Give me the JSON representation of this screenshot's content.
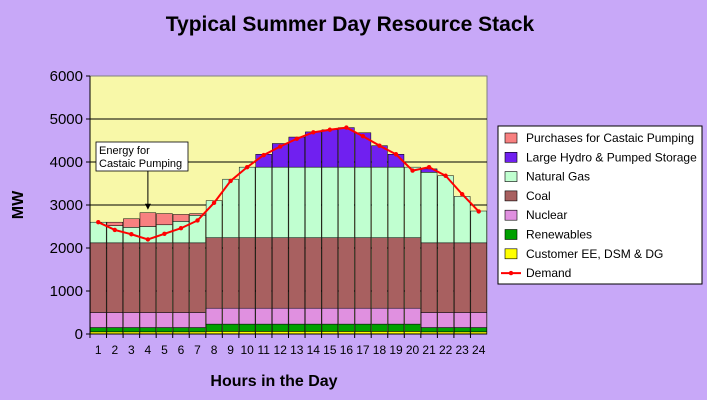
{
  "chart_data": {
    "type": "bar",
    "stacked": true,
    "title": "Typical Summer Day Resource Stack",
    "xlabel": "Hours in the Day",
    "ylabel": "MW",
    "ylim": [
      0,
      6000
    ],
    "yticks": [
      0,
      1000,
      2000,
      3000,
      4000,
      5000,
      6000
    ],
    "grid": true,
    "legend_position": "right",
    "plot_background": "#f8f8a8",
    "categories": [
      "1",
      "2",
      "3",
      "4",
      "5",
      "6",
      "7",
      "8",
      "9",
      "10",
      "11",
      "12",
      "13",
      "14",
      "15",
      "16",
      "17",
      "18",
      "19",
      "20",
      "21",
      "22",
      "23",
      "24"
    ],
    "series": [
      {
        "name": "Customer EE, DSM & DG",
        "color": "#ffff00",
        "values": [
          50,
          50,
          50,
          50,
          50,
          50,
          50,
          60,
          60,
          60,
          60,
          60,
          60,
          60,
          60,
          60,
          60,
          60,
          60,
          60,
          50,
          50,
          50,
          50
        ]
      },
      {
        "name": "Renewables",
        "color": "#00a000",
        "values": [
          100,
          100,
          100,
          100,
          100,
          100,
          100,
          170,
          170,
          170,
          170,
          170,
          170,
          170,
          170,
          170,
          170,
          170,
          170,
          170,
          100,
          100,
          100,
          100
        ]
      },
      {
        "name": "Nuclear",
        "color": "#e090e0",
        "values": [
          350,
          350,
          350,
          350,
          350,
          350,
          350,
          370,
          370,
          370,
          370,
          370,
          370,
          370,
          370,
          370,
          370,
          370,
          370,
          370,
          350,
          350,
          350,
          350
        ]
      },
      {
        "name": "Coal",
        "color": "#a86060",
        "values": [
          1620,
          1620,
          1620,
          1620,
          1620,
          1620,
          1620,
          1640,
          1640,
          1640,
          1640,
          1640,
          1640,
          1640,
          1640,
          1640,
          1640,
          1640,
          1640,
          1640,
          1620,
          1620,
          1620,
          1620
        ]
      },
      {
        "name": "Natural Gas",
        "color": "#c0ffd0",
        "values": [
          480,
          400,
          360,
          380,
          420,
          500,
          640,
          860,
          1360,
          1640,
          1640,
          1640,
          1640,
          1640,
          1640,
          1640,
          1640,
          1640,
          1640,
          1640,
          1640,
          1560,
          1080,
          740
        ]
      },
      {
        "name": "Large Hydro & Pumped Storage",
        "color": "#7020f0",
        "values": [
          0,
          0,
          0,
          0,
          0,
          0,
          0,
          0,
          0,
          0,
          300,
          550,
          700,
          820,
          870,
          920,
          800,
          500,
          300,
          0,
          80,
          0,
          0,
          0
        ]
      },
      {
        "name": "Purchases for Castaic Pumping",
        "color": "#f88080",
        "values": [
          0,
          80,
          200,
          320,
          260,
          160,
          40,
          0,
          0,
          0,
          0,
          0,
          0,
          0,
          0,
          0,
          0,
          0,
          0,
          0,
          0,
          0,
          0,
          0
        ]
      }
    ],
    "line_series": {
      "name": "Demand",
      "color": "#ff0000",
      "values": [
        2600,
        2420,
        2320,
        2200,
        2330,
        2460,
        2640,
        3050,
        3560,
        3880,
        4160,
        4360,
        4540,
        4690,
        4750,
        4800,
        4600,
        4380,
        4180,
        3800,
        3880,
        3680,
        3250,
        2850
      ]
    },
    "annotations": [
      {
        "lines": [
          "Energy for",
          "Castaic Pumping"
        ],
        "points_to_category": "4"
      }
    ]
  }
}
